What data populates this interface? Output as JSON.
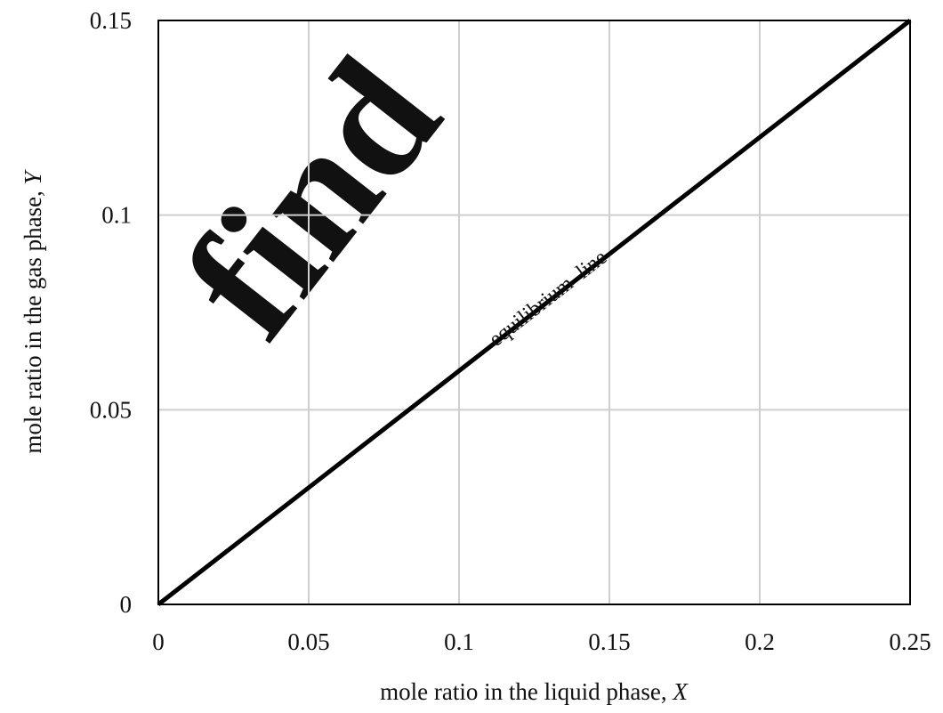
{
  "chart_data": {
    "type": "line",
    "title": "",
    "xlabel": "mole ratio in the liquid phase, ",
    "xlabel_var": "X",
    "ylabel": "mole ratio in the gas phase, ",
    "ylabel_var": "Y",
    "xlim": [
      0,
      0.25
    ],
    "ylim": [
      0,
      0.15
    ],
    "xticks": [
      0,
      0.05,
      0.1,
      0.15,
      0.2,
      0.25
    ],
    "xtick_labels": [
      "0",
      "0.05",
      "0.1",
      "0.15",
      "0.2",
      "0.25"
    ],
    "yticks": [
      0,
      0.05,
      0.1,
      0.15
    ],
    "ytick_labels": [
      "0",
      "0.05",
      "0.1",
      "0.15"
    ],
    "grid": true,
    "legend": "none",
    "series": [
      {
        "x": [
          0,
          0.25
        ],
        "y": [
          0,
          0.15
        ],
        "color": "#000000"
      }
    ],
    "annotations": [
      {
        "text": "equilibrium  line",
        "x": 0.125,
        "y": 0.075
      }
    ]
  },
  "watermark": {
    "text": "find",
    "color": "#ececec"
  }
}
